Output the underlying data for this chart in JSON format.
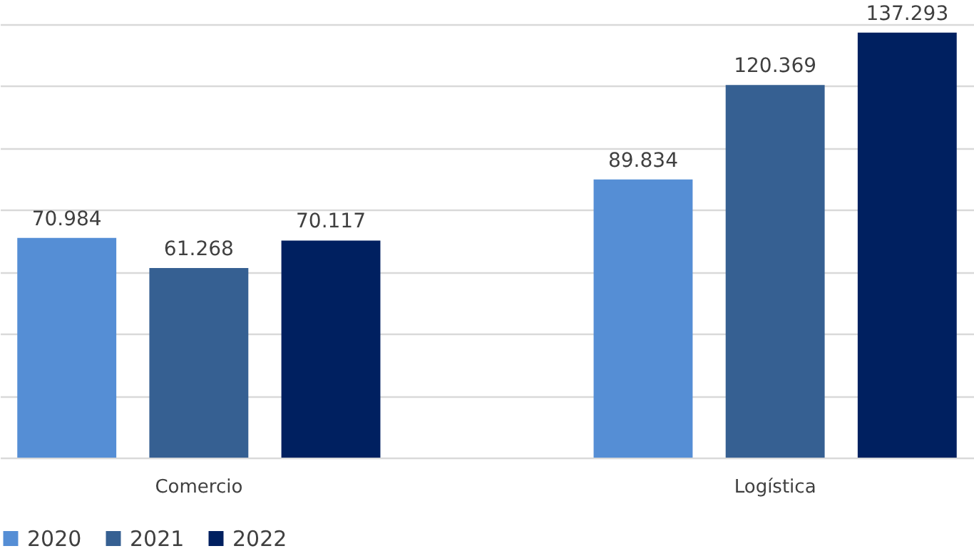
{
  "chart_data": {
    "type": "bar",
    "categories": [
      "Comercio",
      "Logística"
    ],
    "series": [
      {
        "name": "2020",
        "color": "#558ed5",
        "values": [
          70.984,
          89.834
        ]
      },
      {
        "name": "2021",
        "color": "#366092",
        "values": [
          61.268,
          120.369
        ]
      },
      {
        "name": "2022",
        "color": "#002060",
        "values": [
          70.117,
          137.293
        ]
      }
    ],
    "ylim": [
      0,
      140
    ],
    "yticks": [
      {
        "value": 0,
        "label": null
      },
      {
        "value": 20,
        "label": null
      },
      {
        "value": 40,
        "label": null
      },
      {
        "value": 60,
        "label": null
      },
      {
        "value": 80,
        "label": null
      },
      {
        "value": 100,
        "label": null
      },
      {
        "value": 120,
        "label": null
      },
      {
        "value": 140,
        "label": null
      }
    ],
    "grid": "y",
    "tick_labels": "x",
    "legend": "bottom",
    "data_labels": true
  }
}
